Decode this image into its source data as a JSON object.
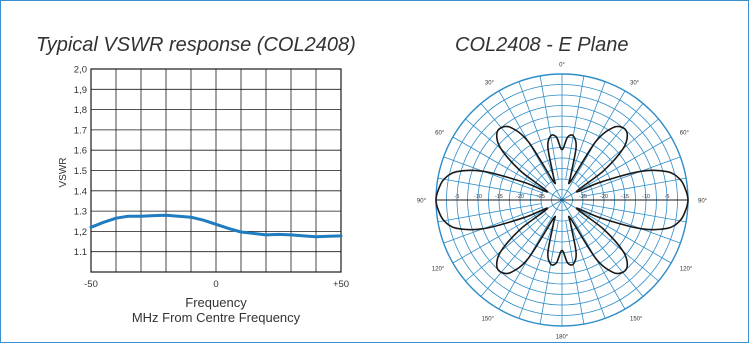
{
  "colors": {
    "frame": "#3a8fcf",
    "vswr_line": "#1f7cc1",
    "polar_grid": "#2e8cc8",
    "pattern": "#1a1a1a",
    "text": "#333333"
  },
  "charts": [
    {
      "title": "Typical VSWR response (COL2408)",
      "chart_data": {
        "type": "line",
        "title": "Typical VSWR response (COL2408)",
        "xlabel": "Frequency",
        "xlabel_sub": "MHz From Centre Frequency",
        "ylabel": "VSWR",
        "xlim": [
          -50,
          50
        ],
        "ylim": [
          1.0,
          2.0
        ],
        "grid": true,
        "x_ticks": [
          {
            "value": -50,
            "label": "-50"
          },
          {
            "value": 0,
            "label": "0"
          },
          {
            "value": 50,
            "label": "+50"
          }
        ],
        "y_ticks": [
          {
            "value": 1.1,
            "label": "1.1"
          },
          {
            "value": 1.2,
            "label": "1,2"
          },
          {
            "value": 1.3,
            "label": "1.3"
          },
          {
            "value": 1.4,
            "label": "1.4"
          },
          {
            "value": 1.5,
            "label": "1.5"
          },
          {
            "value": 1.6,
            "label": "1.6"
          },
          {
            "value": 1.7,
            "label": "1.7"
          },
          {
            "value": 1.8,
            "label": "1,8"
          },
          {
            "value": 1.9,
            "label": "1,9"
          },
          {
            "value": 2.0,
            "label": "2,0"
          }
        ],
        "x": [
          -50,
          -45,
          -40,
          -35,
          -30,
          -25,
          -20,
          -15,
          -10,
          -5,
          0,
          5,
          10,
          15,
          20,
          25,
          30,
          35,
          40,
          45,
          50
        ],
        "series": [
          {
            "values": [
              1.22,
              1.245,
              1.265,
              1.275,
              1.275,
              1.278,
              1.28,
              1.275,
              1.27,
              1.255,
              1.235,
              1.215,
              1.197,
              1.19,
              1.183,
              1.185,
              1.183,
              1.178,
              1.174,
              1.176,
              1.178
            ]
          }
        ]
      }
    },
    {
      "title": "COL2408 - E Plane",
      "chart_data": {
        "type": "polar",
        "title": "COL2408 - E Plane",
        "angle_labels": [
          {
            "angle": 0,
            "label": "0°"
          },
          {
            "angle": 30,
            "label": "30°"
          },
          {
            "angle": 60,
            "label": "60°"
          },
          {
            "angle": 90,
            "label": "90°"
          },
          {
            "angle": 120,
            "label": "120°"
          },
          {
            "angle": 150,
            "label": "150°"
          },
          {
            "angle": 180,
            "label": "180°"
          },
          {
            "angle": 210,
            "label": "150°"
          },
          {
            "angle": 240,
            "label": "120°"
          },
          {
            "angle": 270,
            "label": "90°"
          },
          {
            "angle": 300,
            "label": "60°"
          },
          {
            "angle": 330,
            "label": "30°"
          }
        ],
        "ring_labels": [
          "-5",
          "-10",
          "-15",
          "-20",
          "-25"
        ],
        "rlim": [
          -30,
          0
        ],
        "grid": true,
        "series": [
          {
            "angles": [
              0,
              5,
              10,
              15,
              20,
              25,
              30,
              35,
              40,
              45,
              50,
              55,
              60,
              65,
              70,
              75,
              80,
              85,
              90
            ],
            "values_db": [
              -18,
              -15,
              -14.5,
              -17,
              -24,
              -25,
              -14,
              -9,
              -7.5,
              -8,
              -11,
              -18,
              -26,
              -20,
              -10,
              -4,
              -1.5,
              -0.5,
              0
            ]
          }
        ]
      }
    }
  ]
}
